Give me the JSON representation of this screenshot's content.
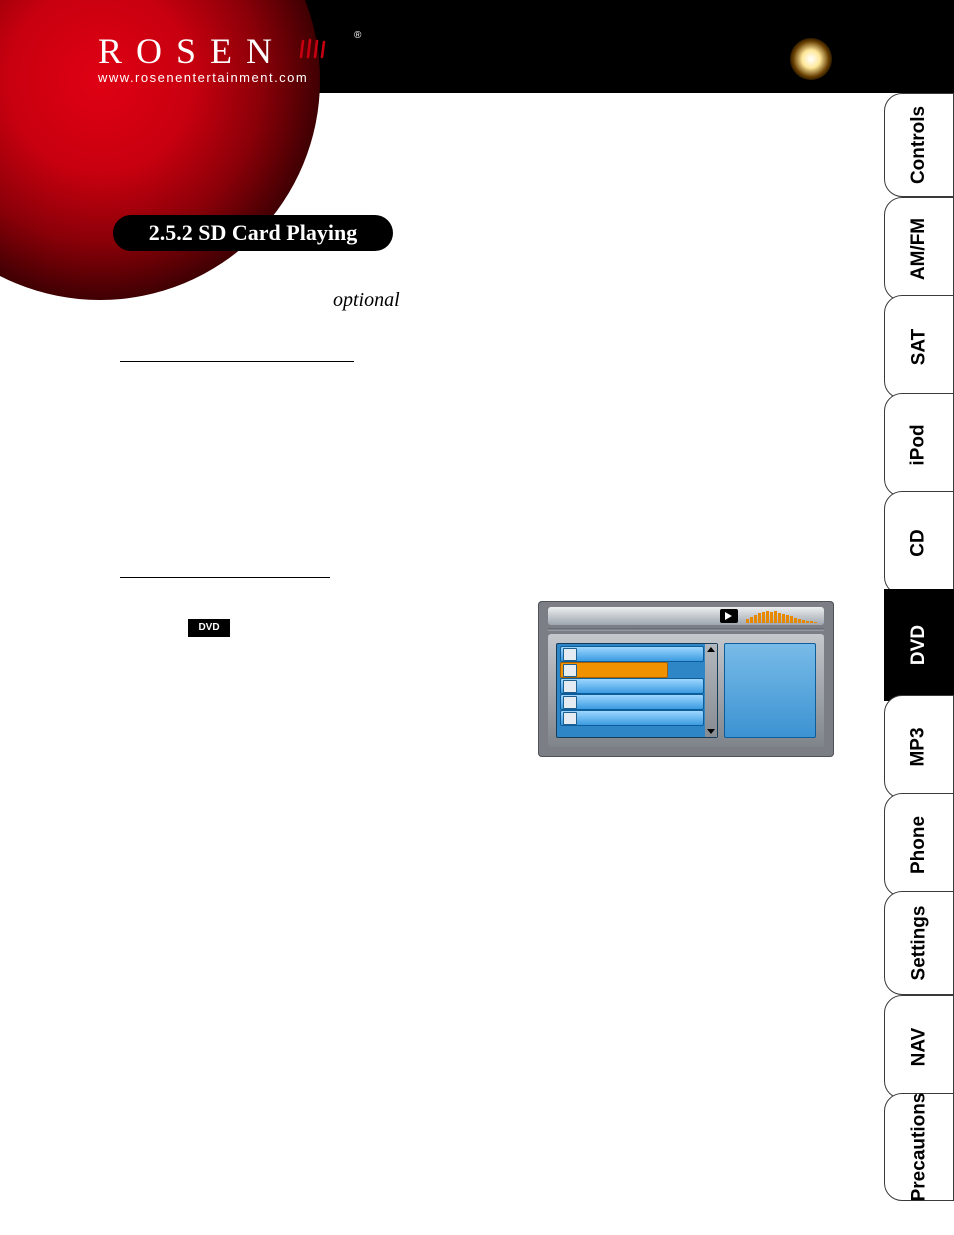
{
  "banner": {
    "logo_text": "ROSEN",
    "logo_url": "www.rosenentertainment.com",
    "accent_color": "#c7000f"
  },
  "tabs": [
    {
      "label": "Controls",
      "active": false
    },
    {
      "label": "AM/FM",
      "active": false
    },
    {
      "label": "SAT",
      "active": false
    },
    {
      "label": "iPod",
      "active": false
    },
    {
      "label": "CD",
      "active": false
    },
    {
      "label": "DVD",
      "active": true
    },
    {
      "label": "MP3",
      "active": false
    },
    {
      "label": "Phone",
      "active": false
    },
    {
      "label": "Settings",
      "active": false
    },
    {
      "label": "NAV",
      "active": false
    },
    {
      "label": "Precautions",
      "active": false
    }
  ],
  "section_pill": "2.5.2 SD Card Playing",
  "optional_word": "optional",
  "dvd_badge_label": "DVD",
  "tab_colors": {
    "inactive_bg": "#ffffff",
    "active_bg": "#000000",
    "border": "#3a3a3a",
    "text": "#000000",
    "active_text": "#ffffff"
  },
  "device_colors": {
    "frame": "#7b7f85",
    "topbar_light": "#eceef0",
    "topbar_dark": "#9fa6ae",
    "list_bg": "#2f86c6",
    "row_top": "#9ed7ff",
    "row_bottom": "#3b9be0",
    "row_selected": "#f09100",
    "preview_top": "#78bbe8",
    "preview_bottom": "#3c93d2",
    "border_dark": "#0d5d9a"
  },
  "equalizer_heights": [
    4,
    6,
    8,
    10,
    11,
    12,
    11,
    12,
    10,
    9,
    8,
    7,
    5,
    4,
    3,
    2,
    2,
    1
  ]
}
